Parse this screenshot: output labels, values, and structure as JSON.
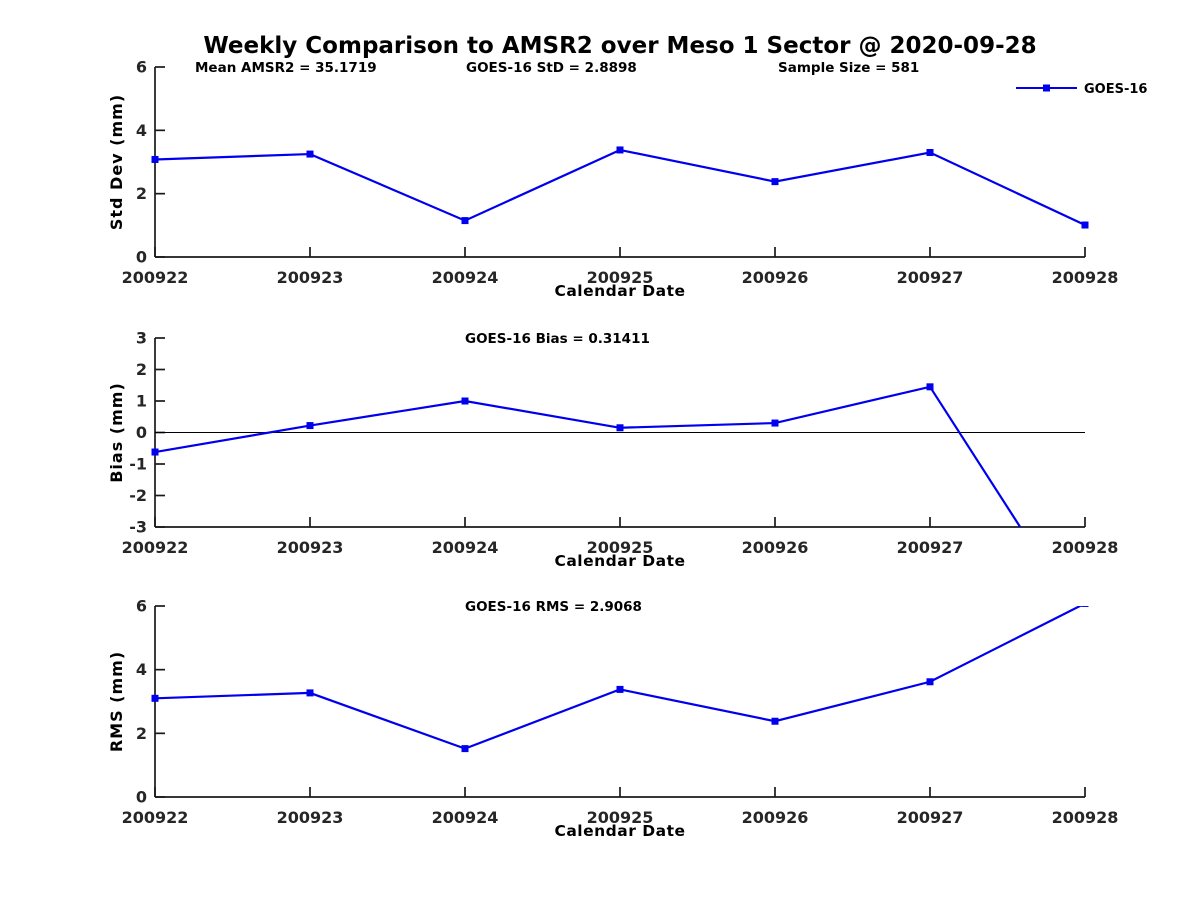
{
  "title": "Weekly Comparison to AMSR2 over Meso 1 Sector @ 2020-09-28",
  "colors": {
    "line": "#0000EE",
    "axis": "#1a1a1a",
    "tick_text": "#262626",
    "text": "#000000",
    "zero_line": "#000000"
  },
  "legend": {
    "label": "GOES-16",
    "position": "top-right",
    "marker": "square"
  },
  "chart_data": [
    {
      "type": "line",
      "title": "",
      "xlabel": "Calendar Date",
      "ylabel": "Std Dev (mm)",
      "categories": [
        "200922",
        "200923",
        "200924",
        "200925",
        "200926",
        "200927",
        "200928"
      ],
      "series": [
        {
          "name": "GOES-16",
          "values": [
            3.08,
            3.25,
            1.15,
            3.38,
            2.38,
            3.3,
            1.01
          ]
        }
      ],
      "ylim": [
        0,
        6
      ],
      "yticks": [
        0,
        2,
        4,
        6
      ],
      "grid": false,
      "zero_line": false,
      "annotations": [
        "Mean AMSR2 = 35.1719",
        "GOES-16 StD = 2.8898",
        "Sample Size = 581"
      ]
    },
    {
      "type": "line",
      "title": "",
      "xlabel": "Calendar Date",
      "ylabel": "Bias (mm)",
      "categories": [
        "200922",
        "200923",
        "200924",
        "200925",
        "200926",
        "200927",
        "200928"
      ],
      "series": [
        {
          "name": "GOES-16",
          "values": [
            -0.62,
            0.22,
            1.0,
            0.15,
            0.3,
            1.45,
            -6.2
          ]
        }
      ],
      "ylim": [
        -3,
        3
      ],
      "yticks": [
        -3,
        -2,
        -1,
        0,
        1,
        2,
        3
      ],
      "grid": false,
      "zero_line": true,
      "note": "last value off-scale below axis (clipped)",
      "annotations": [
        "GOES-16 Bias  = 0.31411"
      ]
    },
    {
      "type": "line",
      "title": "",
      "xlabel": "Calendar Date",
      "ylabel": "RMS (mm)",
      "categories": [
        "200922",
        "200923",
        "200924",
        "200925",
        "200926",
        "200927",
        "200928"
      ],
      "series": [
        {
          "name": "GOES-16",
          "values": [
            3.1,
            3.27,
            1.52,
            3.38,
            2.38,
            3.62,
            6.08
          ]
        }
      ],
      "ylim": [
        0,
        6
      ],
      "yticks": [
        0,
        2,
        4,
        6
      ],
      "grid": false,
      "zero_line": false,
      "note": "last value off-scale above axis (clipped)",
      "annotations": [
        "GOES-16 RMS = 2.9068"
      ]
    }
  ]
}
